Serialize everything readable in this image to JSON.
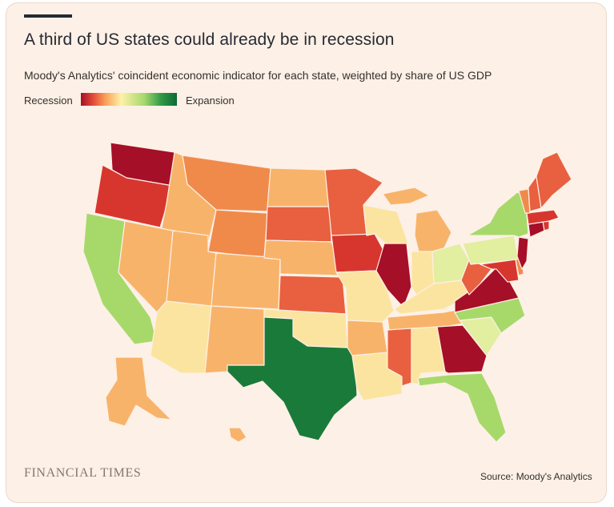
{
  "title": "A third of US states could already be in recession",
  "subtitle": "Moody's Analytics' coincident economic indicator for each state, weighted by share of US GDP",
  "legend": {
    "left_label": "Recession",
    "right_label": "Expansion",
    "ramp_colors": [
      "#a50f27",
      "#e8513a",
      "#f9a35a",
      "#fdf2a8",
      "#a7d86c",
      "#2f9747",
      "#0c6b33"
    ]
  },
  "brand": "FINANCIAL TIMES",
  "source": "Source: Moody's Analytics",
  "colors": {
    "card_background": "#fdf0e6",
    "deep_red": "#a50f27",
    "red": "#d7362f",
    "red_orange": "#e8603f",
    "orange": "#f08a4b",
    "light_orange": "#f8b36a",
    "pale_yellow": "#fbe4a0",
    "light_green": "#a6d96a",
    "dark_green": "#1a7a3a"
  },
  "map": {
    "states": [
      {
        "id": "WA",
        "color": "#a50f27"
      },
      {
        "id": "OR",
        "color": "#d7362f"
      },
      {
        "id": "CA",
        "color": "#a6d96a"
      },
      {
        "id": "ID",
        "color": "#f8b36a"
      },
      {
        "id": "NV",
        "color": "#f8b36a"
      },
      {
        "id": "AZ",
        "color": "#fbe4a0"
      },
      {
        "id": "MT",
        "color": "#f08a4b"
      },
      {
        "id": "WY",
        "color": "#f08a4b"
      },
      {
        "id": "UT",
        "color": "#f8b36a"
      },
      {
        "id": "CO",
        "color": "#f8b36a"
      },
      {
        "id": "NM",
        "color": "#f8b36a"
      },
      {
        "id": "ND",
        "color": "#f8b36a"
      },
      {
        "id": "SD",
        "color": "#e8603f"
      },
      {
        "id": "NE",
        "color": "#f8b36a"
      },
      {
        "id": "KS",
        "color": "#e8603f"
      },
      {
        "id": "OK",
        "color": "#fbe4a0"
      },
      {
        "id": "TX",
        "color": "#1a7a3a"
      },
      {
        "id": "MN",
        "color": "#e8603f"
      },
      {
        "id": "IA",
        "color": "#d7362f"
      },
      {
        "id": "MO",
        "color": "#fbe4a0"
      },
      {
        "id": "AR",
        "color": "#f8b36a"
      },
      {
        "id": "LA",
        "color": "#fbe4a0"
      },
      {
        "id": "WI",
        "color": "#fbe4a0"
      },
      {
        "id": "IL",
        "color": "#a50f27"
      },
      {
        "id": "MI",
        "color": "#f8b36a"
      },
      {
        "id": "IN",
        "color": "#fbe4a0"
      },
      {
        "id": "KY",
        "color": "#fbe4a0"
      },
      {
        "id": "TN",
        "color": "#f8b36a"
      },
      {
        "id": "MS",
        "color": "#e8603f"
      },
      {
        "id": "AL",
        "color": "#fbe4a0"
      },
      {
        "id": "GA",
        "color": "#a50f27"
      },
      {
        "id": "FL",
        "color": "#a6d96a"
      },
      {
        "id": "OH",
        "color": "#e2eea0"
      },
      {
        "id": "WV",
        "color": "#e8603f"
      },
      {
        "id": "VA",
        "color": "#a50f27"
      },
      {
        "id": "NC",
        "color": "#a6d96a"
      },
      {
        "id": "SC",
        "color": "#e2eea0"
      },
      {
        "id": "PA",
        "color": "#e2eea0"
      },
      {
        "id": "NY",
        "color": "#a6d96a"
      },
      {
        "id": "NJ",
        "color": "#a50f27"
      },
      {
        "id": "MD",
        "color": "#d7362f"
      },
      {
        "id": "DE",
        "color": "#f08a4b"
      },
      {
        "id": "CT",
        "color": "#a50f27"
      },
      {
        "id": "RI",
        "color": "#d7362f"
      },
      {
        "id": "MA",
        "color": "#d7362f"
      },
      {
        "id": "VT",
        "color": "#f08a4b"
      },
      {
        "id": "NH",
        "color": "#e8603f"
      },
      {
        "id": "ME",
        "color": "#e8603f"
      },
      {
        "id": "AK",
        "color": "#f8b36a"
      },
      {
        "id": "HI",
        "color": "#f8b36a"
      }
    ]
  }
}
